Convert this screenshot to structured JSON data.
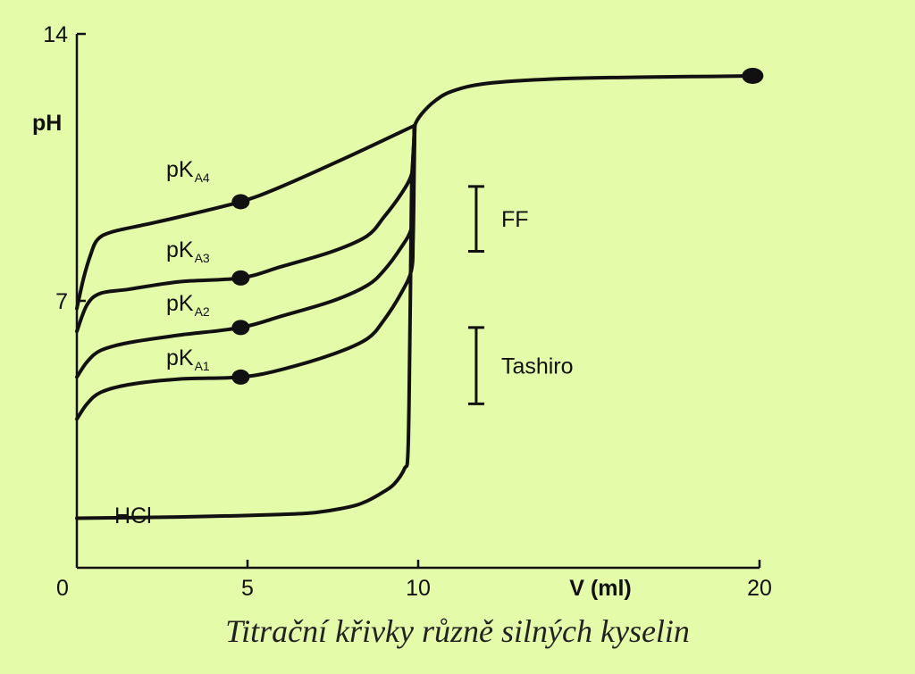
{
  "caption": "Titrační křivky různě silných kyselin",
  "colors": {
    "background": "#e4fba9",
    "ink": "#111111"
  },
  "chart_data": {
    "type": "line",
    "title": "",
    "xlabel": "V (ml)",
    "ylabel": "pH",
    "xlim": [
      0,
      20
    ],
    "ylim": [
      0,
      14
    ],
    "x_ticks": [
      "0",
      "5",
      "10",
      "20"
    ],
    "y_ticks": [
      "7",
      "14"
    ],
    "grid": false,
    "series": [
      {
        "name": "HCl",
        "label": "HCl",
        "x": [
          0,
          2,
          4,
          6,
          7,
          8,
          8.5,
          9,
          9.3,
          9.6,
          9.7,
          9.75,
          9.8,
          9.82,
          9.85,
          9.88,
          9.9,
          10.1,
          10.5,
          11,
          12,
          14,
          16,
          18,
          19.8
        ],
        "y": [
          1.3,
          1.32,
          1.35,
          1.4,
          1.45,
          1.6,
          1.75,
          2.0,
          2.2,
          2.6,
          3.0,
          5.5,
          9.5,
          10.3,
          10.8,
          11.3,
          11.6,
          11.9,
          12.25,
          12.5,
          12.7,
          12.82,
          12.86,
          12.88,
          12.9
        ],
        "markers": []
      },
      {
        "name": "pKA1",
        "label": "pKA1",
        "x": [
          0,
          0.3,
          0.7,
          1.5,
          3,
          4.8,
          6,
          7.5,
          8.5,
          9,
          9.5,
          9.8,
          9.85,
          9.88,
          9.9
        ],
        "y": [
          3.9,
          4.3,
          4.6,
          4.8,
          4.95,
          5.0,
          5.2,
          5.6,
          6.0,
          6.5,
          7.2,
          7.8,
          8.6,
          10.3,
          11.6
        ],
        "markers": [
          {
            "x": 4.8,
            "y": 5.0
          }
        ],
        "label_subscript": "A1"
      },
      {
        "name": "pKA2",
        "label": "pKA2",
        "x": [
          0,
          0.3,
          0.7,
          1.5,
          3,
          4.8,
          6,
          7.5,
          8.5,
          9,
          9.5,
          9.8,
          9.85,
          9.88,
          9.9
        ],
        "y": [
          5.0,
          5.4,
          5.7,
          5.9,
          6.1,
          6.3,
          6.6,
          7.0,
          7.4,
          7.8,
          8.4,
          8.9,
          9.6,
          10.8,
          11.6
        ],
        "markers": [
          {
            "x": 4.8,
            "y": 6.3
          }
        ],
        "label_subscript": "A2"
      },
      {
        "name": "pKA3",
        "label": "pKA3",
        "x": [
          0,
          0.3,
          0.7,
          1.5,
          3,
          4.8,
          6,
          7.5,
          8.5,
          9,
          9.5,
          9.8,
          9.85,
          9.88,
          9.9
        ],
        "y": [
          6.2,
          6.9,
          7.2,
          7.3,
          7.5,
          7.6,
          7.9,
          8.3,
          8.7,
          9.2,
          9.8,
          10.3,
          10.8,
          11.3,
          11.6
        ],
        "markers": [
          {
            "x": 4.8,
            "y": 7.6
          }
        ],
        "label_subscript": "A3"
      },
      {
        "name": "pKA4",
        "label": "pKA4",
        "x": [
          0,
          0.2,
          0.4,
          0.6,
          1,
          2,
          3,
          4.8,
          6,
          8,
          9.9
        ],
        "y": [
          6.8,
          7.6,
          8.2,
          8.6,
          8.8,
          9.0,
          9.2,
          9.6,
          10.0,
          10.8,
          11.6
        ],
        "markers": [
          {
            "x": 4.8,
            "y": 9.6
          }
        ],
        "label_subscript": "A4"
      }
    ],
    "endpoint_marker": {
      "x": 19.8,
      "y": 12.9
    },
    "ranges": [
      {
        "label": "FF",
        "x": 11.7,
        "y_low": 8.3,
        "y_high": 10.0
      },
      {
        "label": "Tashiro",
        "x": 11.7,
        "y_low": 4.3,
        "y_high": 6.3
      }
    ]
  }
}
